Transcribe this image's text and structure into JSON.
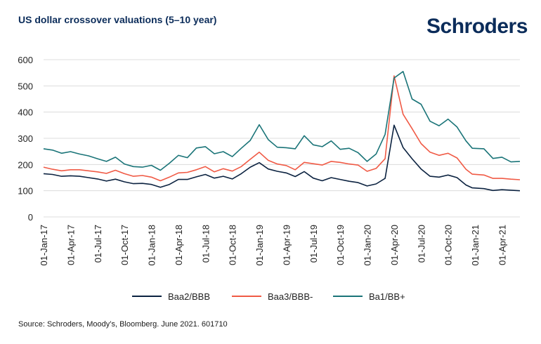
{
  "title": "US dollar crossover valuations (5–10 year)",
  "logo": "Schroders",
  "source": "Source: Schroders, Moody’s, Bloomberg. June 2021. 601710",
  "colors": {
    "navy": "#0b2c5a",
    "baa2": "#0b2240",
    "baa3": "#f05a45",
    "ba1": "#1a7478",
    "grid": "#dcdcdc"
  },
  "chart_data": {
    "type": "line",
    "title": "US dollar crossover valuations (5–10 year)",
    "xlabel": "",
    "ylabel": "",
    "ylim": [
      0,
      600
    ],
    "yticks": [
      0,
      100,
      200,
      300,
      400,
      500,
      600
    ],
    "grid": "horizontal",
    "legend_position": "bottom",
    "x_tick_labels": [
      "01-Jan-17",
      "01-Apr-17",
      "01-Jul-17",
      "01-Oct-17",
      "01-Jan-18",
      "01-Apr-18",
      "01-Jul-18",
      "01-Oct-18",
      "01-Jan-19",
      "01-Apr-19",
      "01-Jul-19",
      "01-Oct-19",
      "01-Jan-20",
      "01-Apr-20",
      "01-Jul-20",
      "01-Oct-20",
      "01-Jan-21",
      "01-Apr-21"
    ],
    "months": 53,
    "x_index": [
      0,
      1,
      2,
      3,
      4,
      5,
      6,
      7,
      8,
      9,
      10,
      11,
      12,
      13,
      14,
      15,
      16,
      17,
      18,
      19,
      20,
      21,
      22,
      23,
      24,
      25,
      26,
      27,
      28,
      29,
      30,
      31,
      32,
      33,
      34,
      35,
      36,
      37,
      38,
      39,
      40,
      41,
      42,
      43,
      44,
      45,
      46,
      47,
      47.7,
      49,
      50,
      51,
      52,
      53
    ],
    "series": [
      {
        "name": "Baa2/BBB",
        "values": [
          165,
          162,
          155,
          157,
          155,
          150,
          145,
          137,
          144,
          134,
          127,
          128,
          124,
          113,
          124,
          143,
          143,
          153,
          162,
          148,
          155,
          145,
          165,
          190,
          207,
          183,
          174,
          168,
          154,
          173,
          148,
          138,
          150,
          143,
          136,
          131,
          118,
          126,
          147,
          350,
          265,
          222,
          183,
          155,
          152,
          160,
          150,
          122,
          111,
          108,
          101,
          104,
          102,
          100
        ]
      },
      {
        "name": "Baa3/BBB-",
        "values": [
          190,
          182,
          176,
          180,
          180,
          176,
          172,
          166,
          178,
          165,
          155,
          158,
          152,
          138,
          152,
          168,
          170,
          180,
          192,
          172,
          184,
          175,
          192,
          220,
          247,
          216,
          202,
          196,
          180,
          208,
          203,
          198,
          212,
          208,
          202,
          198,
          174,
          185,
          222,
          538,
          392,
          337,
          280,
          247,
          235,
          243,
          225,
          182,
          163,
          160,
          147,
          147,
          144,
          142
        ]
      },
      {
        "name": "Ba1/BB+",
        "values": [
          260,
          255,
          243,
          249,
          240,
          233,
          222,
          212,
          228,
          202,
          192,
          190,
          197,
          178,
          205,
          235,
          226,
          263,
          268,
          241,
          249,
          230,
          262,
          292,
          352,
          295,
          266,
          264,
          260,
          310,
          275,
          268,
          290,
          258,
          262,
          245,
          212,
          240,
          315,
          530,
          555,
          450,
          430,
          365,
          348,
          373,
          343,
          290,
          262,
          260,
          223,
          228,
          210,
          212
        ]
      }
    ]
  }
}
